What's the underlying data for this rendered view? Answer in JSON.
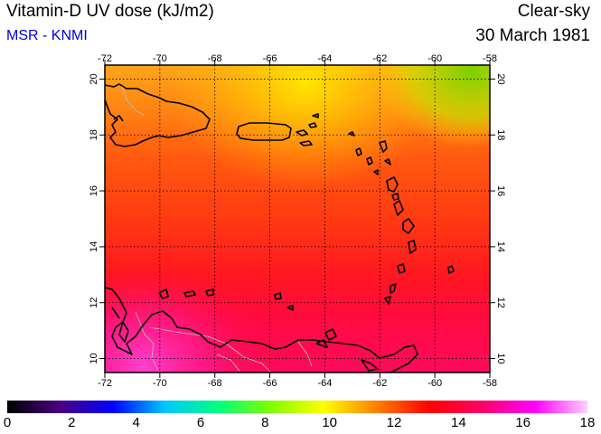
{
  "header": {
    "title": "Vitamin-D UV dose (kJ/m2)",
    "source": "MSR - KNMI",
    "sky_condition": "Clear-sky",
    "date": "30 March 1981"
  },
  "map": {
    "lon_range": [
      -72,
      -58
    ],
    "lat_range": [
      9.5,
      20.5
    ],
    "lon_ticks": [
      "-72",
      "-70",
      "-68",
      "-66",
      "-64",
      "-62",
      "-60",
      "-58"
    ],
    "lat_ticks": [
      "20",
      "18",
      "16",
      "14",
      "12",
      "10"
    ],
    "gridlines": true,
    "gridline_style": "dotted",
    "coastline_color": "#000000",
    "border_color": "#b0b0b0"
  },
  "colorbar": {
    "min": 0,
    "max": 18,
    "tick_labels": [
      "0",
      "2",
      "4",
      "6",
      "8",
      "10",
      "12",
      "14",
      "16",
      "18"
    ],
    "colors": [
      "#000000",
      "#4b0082",
      "#0000ff",
      "#00c8ff",
      "#00ff80",
      "#80ff00",
      "#ffff00",
      "#ff8000",
      "#ff0000",
      "#ff0066",
      "#ff00ff",
      "#ffd0ff"
    ]
  },
  "chart_data": {
    "type": "heatmap",
    "title": "Vitamin-D UV dose (kJ/m2)",
    "xlabel": "",
    "ylabel": "",
    "xlim": [
      -72,
      -58
    ],
    "ylim": [
      9.5,
      20.5
    ],
    "value_range": [
      0,
      18
    ],
    "units": "kJ/m2",
    "approx_values_by_region": [
      {
        "region": "northeast corner (lat 20, lon -59)",
        "value": 9.5
      },
      {
        "region": "north-central (lat 19.5, lon -64)",
        "value": 11
      },
      {
        "region": "north-west (lat 19, lon -70)",
        "value": 12
      },
      {
        "region": "central band (lat 15, lon -65)",
        "value": 13
      },
      {
        "region": "south band (lat 12, lon -65)",
        "value": 14
      },
      {
        "region": "southwest (lat 10, lon -71)",
        "value": 15.5
      }
    ]
  }
}
